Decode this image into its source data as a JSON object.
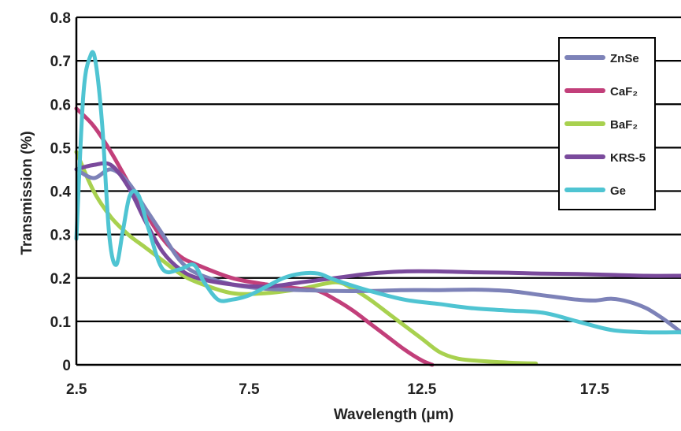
{
  "chart_data": {
    "type": "line",
    "title": "",
    "xlabel": "Wavelength (μm)",
    "ylabel": "Transmission (%)",
    "xlim": [
      2.5,
      20
    ],
    "ylim": [
      0,
      0.8
    ],
    "xticks": [
      2.5,
      7.5,
      12.5,
      17.5
    ],
    "xtick_labels": [
      "2.5",
      "7.5",
      "12.5",
      "17.5"
    ],
    "yticks": [
      0,
      0.1,
      0.2,
      0.3,
      0.4,
      0.5,
      0.6,
      0.7,
      0.8
    ],
    "ytick_labels": [
      "0",
      "0.1",
      "0.2",
      "0.3",
      "0.4",
      "0.5",
      "0.6",
      "0.7",
      "0.8"
    ],
    "grid": "horizontal",
    "legend_position": "top-right",
    "series": [
      {
        "name": "ZnSe",
        "color": "#7d82b8",
        "x": [
          2.5,
          3,
          3.5,
          4,
          4.5,
          5,
          5.5,
          6,
          7,
          8,
          9,
          10,
          11,
          12,
          13,
          14,
          15,
          16,
          16.5,
          17,
          17.5,
          18,
          18.5,
          19,
          19.5,
          20
        ],
        "y": [
          0.45,
          0.43,
          0.45,
          0.42,
          0.36,
          0.3,
          0.24,
          0.21,
          0.185,
          0.175,
          0.172,
          0.17,
          0.17,
          0.172,
          0.172,
          0.173,
          0.17,
          0.16,
          0.155,
          0.15,
          0.148,
          0.152,
          0.145,
          0.13,
          0.105,
          0.075
        ]
      },
      {
        "name": "CaF₂",
        "color": "#c23f7a",
        "x": [
          2.5,
          3,
          3.5,
          4,
          4.5,
          5,
          5.5,
          6,
          7,
          8,
          9,
          9.5,
          10,
          10.5,
          11,
          11.5,
          12,
          12.5,
          12.8
        ],
        "y": [
          0.59,
          0.55,
          0.49,
          0.42,
          0.35,
          0.29,
          0.25,
          0.23,
          0.2,
          0.185,
          0.175,
          0.17,
          0.15,
          0.125,
          0.095,
          0.065,
          0.035,
          0.01,
          0.0
        ]
      },
      {
        "name": "BaF₂",
        "color": "#a8d14f",
        "x": [
          2.5,
          3,
          3.5,
          4,
          4.5,
          5,
          5.5,
          6,
          7,
          8,
          9,
          10,
          10.5,
          11,
          11.5,
          12,
          12.5,
          13,
          13.5,
          14,
          15,
          15.8
        ],
        "y": [
          0.49,
          0.4,
          0.34,
          0.3,
          0.27,
          0.24,
          0.21,
          0.19,
          0.165,
          0.165,
          0.175,
          0.19,
          0.175,
          0.15,
          0.12,
          0.09,
          0.06,
          0.03,
          0.015,
          0.01,
          0.005,
          0.003
        ]
      },
      {
        "name": "KRS-5",
        "color": "#7a4a9c",
        "x": [
          2.5,
          3,
          3.5,
          4,
          4.5,
          5,
          5.5,
          6,
          7,
          8,
          9,
          10,
          11,
          12,
          13,
          14,
          15,
          16,
          17,
          18,
          19,
          20
        ],
        "y": [
          0.45,
          0.46,
          0.46,
          0.41,
          0.33,
          0.26,
          0.22,
          0.2,
          0.185,
          0.18,
          0.19,
          0.2,
          0.21,
          0.215,
          0.215,
          0.213,
          0.212,
          0.21,
          0.209,
          0.207,
          0.205,
          0.205
        ]
      },
      {
        "name": "Ge",
        "color": "#4fc4d2",
        "x": [
          2.5,
          2.7,
          2.9,
          3.05,
          3.25,
          3.45,
          3.65,
          3.85,
          4.05,
          4.3,
          4.6,
          5,
          5.5,
          5.9,
          6.2,
          6.6,
          7,
          7.5,
          8,
          8.5,
          9,
          9.5,
          10,
          11,
          12,
          13,
          14,
          15,
          16,
          17,
          18,
          19,
          20
        ],
        "y": [
          0.29,
          0.62,
          0.71,
          0.7,
          0.55,
          0.3,
          0.23,
          0.31,
          0.39,
          0.39,
          0.31,
          0.22,
          0.22,
          0.23,
          0.19,
          0.15,
          0.15,
          0.16,
          0.18,
          0.2,
          0.21,
          0.21,
          0.195,
          0.17,
          0.15,
          0.14,
          0.13,
          0.125,
          0.12,
          0.1,
          0.08,
          0.075,
          0.075
        ]
      }
    ]
  }
}
